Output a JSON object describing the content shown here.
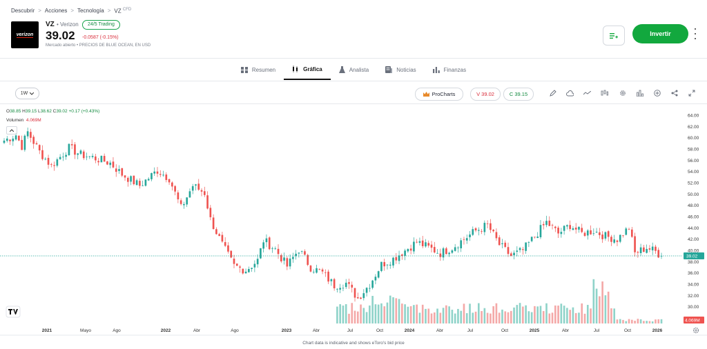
{
  "breadcrumb": {
    "items": [
      "Descubrir",
      "Acciones",
      "Tecnología"
    ],
    "current": "VZ",
    "current_sup": "CFD"
  },
  "instrument": {
    "logo_text": "verizon",
    "symbol": "VZ",
    "name": "• Verizon",
    "trading_badge": "24/5 Trading",
    "price": "39.02",
    "change": "-0.0587 (-0.15%)",
    "market_status": "Mercado abierto",
    "price_note": "• PRECIOS DE BLUE OCEAN, EN USD"
  },
  "actions": {
    "invest_label": "Invertir"
  },
  "tabs": [
    {
      "label": "Resumen",
      "icon": "overview-icon",
      "active": false
    },
    {
      "label": "Gráfica",
      "icon": "candles-icon",
      "active": true
    },
    {
      "label": "Analista",
      "icon": "flask-icon",
      "active": false
    },
    {
      "label": "Noticias",
      "icon": "news-icon",
      "active": false
    },
    {
      "label": "Finanzas",
      "icon": "bar-chart-icon",
      "active": false
    }
  ],
  "toolbar": {
    "timeframe": "1W",
    "prochart_label": "ProCharts",
    "sell_label": "V 39.02",
    "buy_label": "C 39.15"
  },
  "legend": {
    "o_label": "O",
    "o": "38.85",
    "h_label": "H",
    "h": "39.15",
    "l_label": "L",
    "l": "38.62",
    "c_label": "C",
    "c": "39.02",
    "change": "+0.17 (+0.43%)",
    "volume_label": "Volumen",
    "volume": "4.069M"
  },
  "footnote": "Chart data is indicative and shows eToro's bid price",
  "colors": {
    "up": "#26a69a",
    "down": "#ef5350",
    "accent": "#12a83e",
    "vol_up": "#8fd3c9",
    "vol_down": "#f4a9a8"
  },
  "chart_data": {
    "type": "candlestick",
    "title": "",
    "ylim": [
      28,
      65
    ],
    "y_ticks": [
      "64.00",
      "62.00",
      "60.00",
      "58.00",
      "56.00",
      "54.00",
      "52.00",
      "50.00",
      "48.00",
      "46.00",
      "44.00",
      "42.00",
      "40.00",
      "38.00",
      "36.00",
      "34.00",
      "32.00",
      "30.00",
      "28.00"
    ],
    "x_ticks": [
      "2021",
      "Mayo",
      "Ago",
      "2022",
      "Abr",
      "Ago",
      "2023",
      "Abr",
      "Jul",
      "Oct",
      "2024",
      "Abr",
      "Jul",
      "Oct",
      "2025",
      "Abr",
      "Jul",
      "Oct",
      "2026"
    ],
    "last_price_label": "39.02",
    "last_volume_label": "4.069M",
    "close_anchors": [
      [
        0,
        59.5
      ],
      [
        4,
        60.5
      ],
      [
        6,
        58.5
      ],
      [
        8,
        61.0
      ],
      [
        12,
        57.5
      ],
      [
        16,
        55.0
      ],
      [
        22,
        58.2
      ],
      [
        26,
        57.0
      ],
      [
        30,
        56.5
      ],
      [
        36,
        55.5
      ],
      [
        40,
        53.5
      ],
      [
        46,
        51.5
      ],
      [
        52,
        54.2
      ],
      [
        56,
        52.8
      ],
      [
        60,
        47.5
      ],
      [
        64,
        51.5
      ],
      [
        68,
        50.2
      ],
      [
        70,
        45.5
      ],
      [
        74,
        41.0
      ],
      [
        78,
        37.2
      ],
      [
        82,
        36.5
      ],
      [
        86,
        38.2
      ],
      [
        88,
        41.8
      ],
      [
        92,
        40.2
      ],
      [
        96,
        37.2
      ],
      [
        100,
        40.2
      ],
      [
        104,
        37.0
      ],
      [
        108,
        36.0
      ],
      [
        112,
        33.8
      ],
      [
        116,
        34.2
      ],
      [
        120,
        31.5
      ],
      [
        124,
        34.0
      ],
      [
        128,
        37.5
      ],
      [
        132,
        38.5
      ],
      [
        136,
        40.0
      ],
      [
        140,
        41.5
      ],
      [
        144,
        40.5
      ],
      [
        148,
        39.5
      ],
      [
        152,
        40.5
      ],
      [
        156,
        42.0
      ],
      [
        160,
        43.5
      ],
      [
        164,
        44.5
      ],
      [
        168,
        41.0
      ],
      [
        172,
        39.0
      ],
      [
        176,
        40.0
      ],
      [
        180,
        42.5
      ],
      [
        184,
        45.0
      ],
      [
        188,
        43.0
      ],
      [
        192,
        44.5
      ],
      [
        196,
        43.0
      ],
      [
        200,
        43.5
      ],
      [
        204,
        42.5
      ],
      [
        208,
        42.0
      ],
      [
        212,
        44.0
      ],
      [
        214,
        39.5
      ],
      [
        218,
        40.5
      ],
      [
        221,
        39.8
      ],
      [
        223,
        39.0
      ]
    ],
    "n_weeks": 224
  }
}
